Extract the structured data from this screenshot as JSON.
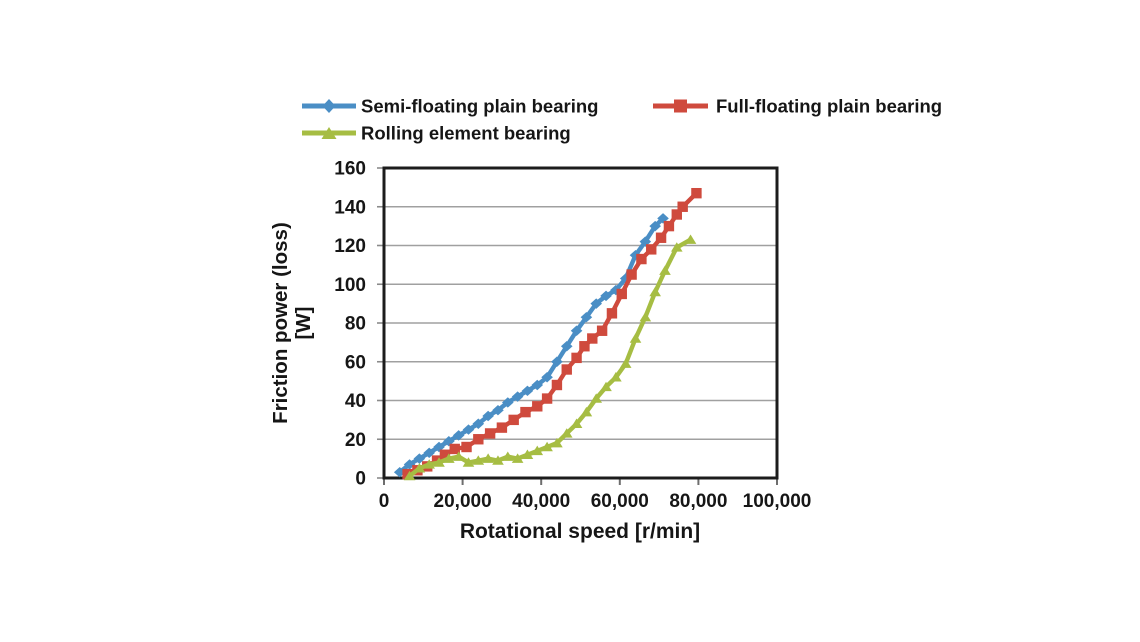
{
  "page": {
    "background": "#ffffff"
  },
  "chart_data": {
    "type": "line",
    "title": "",
    "xlabel": "Rotational speed [r/min]",
    "ylabel": "Friction power (loss)",
    "ylabel_units": "[W]",
    "xlim": [
      0,
      100000
    ],
    "ylim": [
      0,
      160
    ],
    "x_tick_values": [
      0,
      20000,
      40000,
      60000,
      80000,
      100000
    ],
    "x_tick_labels": [
      "0",
      "20,000",
      "40,000",
      "60,000",
      "80,000",
      "100,000"
    ],
    "y_tick_values": [
      0,
      20,
      40,
      60,
      80,
      100,
      120,
      140,
      160
    ],
    "y_tick_labels": [
      "0",
      "20",
      "40",
      "60",
      "80",
      "100",
      "120",
      "140",
      "160"
    ],
    "grid": "horizontal",
    "legend_position": "top",
    "axis_color": "#1c1c1c",
    "grid_color": "#a0a0a0",
    "text_color": "#161616",
    "series": [
      {
        "name": "Semi-floating plain bearing",
        "color": "#4a8ec5",
        "marker": "diamond",
        "points": [
          [
            4000,
            3
          ],
          [
            6500,
            7
          ],
          [
            9000,
            10
          ],
          [
            11500,
            13
          ],
          [
            14000,
            16
          ],
          [
            16500,
            19
          ],
          [
            19000,
            22
          ],
          [
            21500,
            25
          ],
          [
            24000,
            28
          ],
          [
            26500,
            32
          ],
          [
            29000,
            35
          ],
          [
            31500,
            39
          ],
          [
            34000,
            42
          ],
          [
            36500,
            45
          ],
          [
            39000,
            48
          ],
          [
            41500,
            52
          ],
          [
            44000,
            60
          ],
          [
            46500,
            68
          ],
          [
            49000,
            76
          ],
          [
            51500,
            83
          ],
          [
            54000,
            90
          ],
          [
            56500,
            94
          ],
          [
            59000,
            97
          ],
          [
            61500,
            103
          ],
          [
            64000,
            115
          ],
          [
            66500,
            122
          ],
          [
            69000,
            130
          ],
          [
            71000,
            134
          ]
        ]
      },
      {
        "name": "Full-floating plain bearing",
        "color": "#cf4a3d",
        "marker": "square",
        "points": [
          [
            6000,
            2
          ],
          [
            8500,
            4
          ],
          [
            11000,
            6
          ],
          [
            13500,
            9
          ],
          [
            15500,
            12
          ],
          [
            18000,
            15
          ],
          [
            21000,
            16
          ],
          [
            24000,
            20
          ],
          [
            27000,
            23
          ],
          [
            30000,
            26
          ],
          [
            33000,
            30
          ],
          [
            36000,
            34
          ],
          [
            39000,
            37
          ],
          [
            41500,
            41
          ],
          [
            44000,
            48
          ],
          [
            46500,
            56
          ],
          [
            49000,
            62
          ],
          [
            51000,
            68
          ],
          [
            53000,
            72
          ],
          [
            55500,
            76
          ],
          [
            58000,
            85
          ],
          [
            60500,
            95
          ],
          [
            63000,
            105
          ],
          [
            65500,
            113
          ],
          [
            68000,
            118
          ],
          [
            70500,
            124
          ],
          [
            72500,
            130
          ],
          [
            74500,
            136
          ],
          [
            76000,
            140
          ],
          [
            79500,
            147
          ]
        ]
      },
      {
        "name": "Rolling element bearing",
        "color": "#a6bd43",
        "marker": "triangle",
        "points": [
          [
            6500,
            1
          ],
          [
            9000,
            5
          ],
          [
            11500,
            7
          ],
          [
            14000,
            8
          ],
          [
            16500,
            10
          ],
          [
            19000,
            11
          ],
          [
            21500,
            8
          ],
          [
            24000,
            9
          ],
          [
            26500,
            10
          ],
          [
            29000,
            9
          ],
          [
            31500,
            11
          ],
          [
            34000,
            10
          ],
          [
            36500,
            12
          ],
          [
            39000,
            14
          ],
          [
            41500,
            16
          ],
          [
            44000,
            18
          ],
          [
            46500,
            23
          ],
          [
            49000,
            28
          ],
          [
            51500,
            34
          ],
          [
            54000,
            41
          ],
          [
            56500,
            47
          ],
          [
            59000,
            52
          ],
          [
            61500,
            59
          ],
          [
            64000,
            72
          ],
          [
            66500,
            83
          ],
          [
            69000,
            96
          ],
          [
            71500,
            107
          ],
          [
            74500,
            119
          ],
          [
            78000,
            123
          ]
        ]
      }
    ]
  }
}
